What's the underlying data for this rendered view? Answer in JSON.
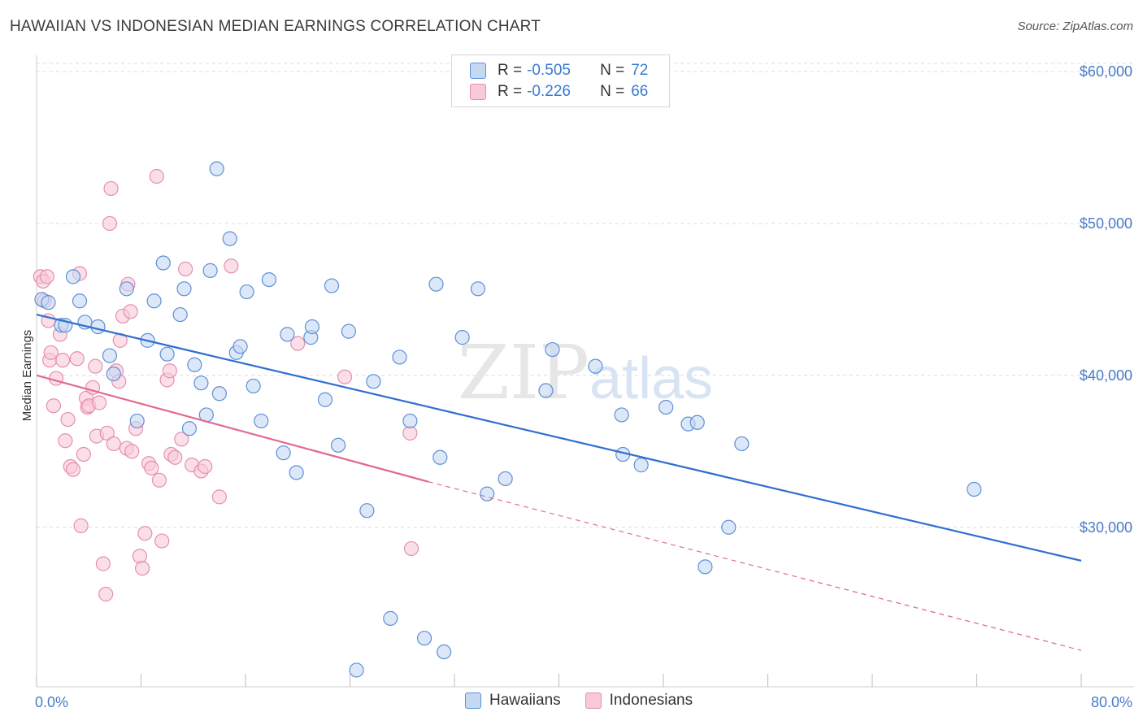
{
  "title": "HAWAIIAN VS INDONESIAN MEDIAN EARNINGS CORRELATION CHART",
  "source": "Source: ZipAtlas.com",
  "watermark": "ZIPatlas",
  "colors": {
    "blue_fill": "#c5d9f3",
    "blue_stroke": "#5f8fd6",
    "blue_line": "#2f6fcf",
    "pink_fill": "#f8c9d8",
    "pink_stroke": "#e58fae",
    "pink_line": "#e06a95",
    "grid": "#dcdcdc",
    "axis_text": "#4a7cc7"
  },
  "legend": {
    "rows": [
      {
        "r_label": "R =",
        "r_value": "-0.505",
        "n_label": "N =",
        "n_value": "72"
      },
      {
        "r_label": "R =",
        "r_value": "-0.226",
        "n_label": "N =",
        "n_value": "66"
      }
    ]
  },
  "bottom_legend": [
    "Hawaiians",
    "Indonesians"
  ],
  "chart_data": {
    "type": "scatter",
    "ylabel": "Median Earnings",
    "xlim": [
      0,
      80
    ],
    "ylim": [
      19500,
      61500
    ],
    "x_tick_labels": [
      "0.0%",
      "80.0%"
    ],
    "y_ticks": [
      30000,
      40000,
      50000,
      60000
    ],
    "y_tick_labels": [
      "$30,000",
      "$40,000",
      "$50,000",
      "$60,000"
    ],
    "grid": true,
    "legend_placement": "top-center",
    "series": [
      {
        "name": "Hawaiians",
        "R": -0.505,
        "N": 72,
        "trend": {
          "x": [
            0,
            80
          ],
          "y": [
            44000,
            27800
          ],
          "style": "solid"
        },
        "points": [
          [
            0.4,
            45000
          ],
          [
            0.9,
            44800
          ],
          [
            1.9,
            43300
          ],
          [
            2.2,
            43300
          ],
          [
            2.8,
            46500
          ],
          [
            3.3,
            44900
          ],
          [
            3.7,
            43500
          ],
          [
            4.7,
            43200
          ],
          [
            5.6,
            41300
          ],
          [
            5.9,
            40100
          ],
          [
            6.9,
            45700
          ],
          [
            7.7,
            37000
          ],
          [
            8.5,
            42300
          ],
          [
            9.0,
            44900
          ],
          [
            9.7,
            47400
          ],
          [
            10.0,
            41400
          ],
          [
            11.0,
            44000
          ],
          [
            11.3,
            45700
          ],
          [
            11.7,
            36500
          ],
          [
            12.1,
            40700
          ],
          [
            12.6,
            39500
          ],
          [
            13.0,
            37400
          ],
          [
            13.3,
            46900
          ],
          [
            13.8,
            53600
          ],
          [
            14.0,
            38800
          ],
          [
            14.8,
            49000
          ],
          [
            15.3,
            41500
          ],
          [
            15.6,
            41900
          ],
          [
            16.1,
            45500
          ],
          [
            16.6,
            39300
          ],
          [
            17.2,
            37000
          ],
          [
            17.8,
            46300
          ],
          [
            18.9,
            34900
          ],
          [
            19.2,
            42700
          ],
          [
            19.9,
            33600
          ],
          [
            21.0,
            42500
          ],
          [
            21.1,
            43200
          ],
          [
            22.1,
            38400
          ],
          [
            22.6,
            45900
          ],
          [
            23.1,
            35400
          ],
          [
            23.9,
            42900
          ],
          [
            24.5,
            20600
          ],
          [
            25.3,
            31100
          ],
          [
            25.8,
            39600
          ],
          [
            27.1,
            24000
          ],
          [
            27.8,
            41200
          ],
          [
            28.6,
            37000
          ],
          [
            29.7,
            22700
          ],
          [
            30.6,
            46000
          ],
          [
            30.9,
            34600
          ],
          [
            31.2,
            21800
          ],
          [
            32.6,
            42500
          ],
          [
            33.8,
            45700
          ],
          [
            34.5,
            32200
          ],
          [
            35.9,
            33200
          ],
          [
            39.0,
            39000
          ],
          [
            39.5,
            41700
          ],
          [
            42.8,
            40600
          ],
          [
            44.8,
            37400
          ],
          [
            44.9,
            34800
          ],
          [
            46.3,
            34100
          ],
          [
            48.2,
            37900
          ],
          [
            49.9,
            36800
          ],
          [
            50.6,
            36900
          ],
          [
            53.0,
            30000
          ],
          [
            51.2,
            27400
          ],
          [
            54.0,
            35500
          ],
          [
            71.8,
            32500
          ]
        ]
      },
      {
        "name": "Indonesians",
        "R": -0.226,
        "N": 66,
        "trend": {
          "x": [
            0,
            30
          ],
          "y": [
            40000,
            33000
          ],
          "style": "solid",
          "extended": {
            "x": [
              30,
              80
            ],
            "y": [
              33000,
              21900
            ],
            "style": "dashed"
          }
        },
        "points": [
          [
            0.3,
            46500
          ],
          [
            0.5,
            46200
          ],
          [
            0.8,
            46500
          ],
          [
            0.9,
            43600
          ],
          [
            1.0,
            41000
          ],
          [
            1.1,
            41500
          ],
          [
            1.3,
            38000
          ],
          [
            1.5,
            39800
          ],
          [
            1.8,
            42700
          ],
          [
            2.0,
            41000
          ],
          [
            2.2,
            35700
          ],
          [
            2.4,
            37100
          ],
          [
            2.6,
            34000
          ],
          [
            2.8,
            33800
          ],
          [
            3.1,
            41100
          ],
          [
            3.3,
            46700
          ],
          [
            3.4,
            30100
          ],
          [
            3.6,
            34800
          ],
          [
            3.8,
            38500
          ],
          [
            3.9,
            37900
          ],
          [
            4.0,
            38000
          ],
          [
            4.3,
            39200
          ],
          [
            4.5,
            40600
          ],
          [
            4.6,
            36000
          ],
          [
            4.8,
            38200
          ],
          [
            5.1,
            27600
          ],
          [
            5.3,
            25600
          ],
          [
            5.4,
            36200
          ],
          [
            5.6,
            50000
          ],
          [
            5.7,
            52300
          ],
          [
            5.9,
            35500
          ],
          [
            6.1,
            40300
          ],
          [
            6.3,
            39600
          ],
          [
            6.4,
            42300
          ],
          [
            6.6,
            43900
          ],
          [
            6.9,
            35200
          ],
          [
            7.0,
            46000
          ],
          [
            7.2,
            44200
          ],
          [
            7.3,
            35000
          ],
          [
            7.6,
            36500
          ],
          [
            7.9,
            28100
          ],
          [
            8.1,
            27300
          ],
          [
            8.3,
            29600
          ],
          [
            8.6,
            34200
          ],
          [
            8.8,
            33900
          ],
          [
            9.2,
            53100
          ],
          [
            9.4,
            33100
          ],
          [
            9.6,
            29100
          ],
          [
            10.0,
            39700
          ],
          [
            10.2,
            40300
          ],
          [
            10.3,
            34800
          ],
          [
            10.6,
            34600
          ],
          [
            11.1,
            35800
          ],
          [
            11.4,
            47000
          ],
          [
            11.9,
            34100
          ],
          [
            12.6,
            33700
          ],
          [
            12.9,
            34000
          ],
          [
            14.0,
            32000
          ],
          [
            14.9,
            47200
          ],
          [
            20.0,
            42100
          ],
          [
            23.6,
            39900
          ],
          [
            28.6,
            36200
          ],
          [
            28.7,
            28600
          ],
          [
            0.6,
            44900
          ]
        ]
      }
    ]
  }
}
